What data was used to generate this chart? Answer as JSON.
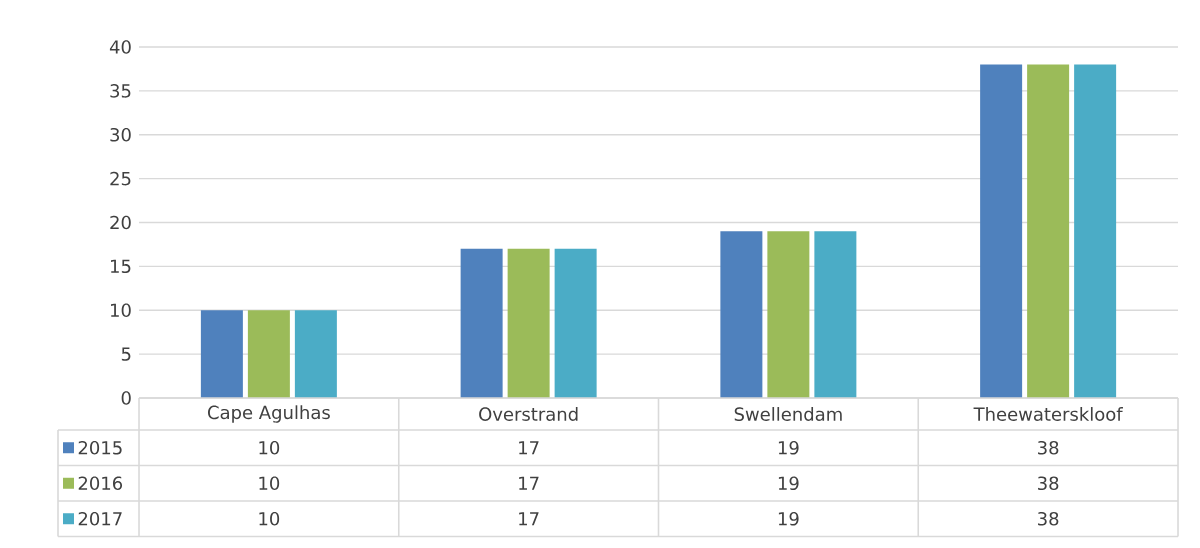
{
  "chart_data": {
    "type": "bar",
    "categories": [
      "Cape Agulhas",
      "Overstrand",
      "Swellendam",
      "Theewaterskloof"
    ],
    "series": [
      {
        "name": "2015",
        "color": "#4f81bd",
        "values": [
          10,
          17,
          19,
          38
        ]
      },
      {
        "name": "2016",
        "color": "#9bbb59",
        "values": [
          10,
          17,
          19,
          38
        ]
      },
      {
        "name": "2017",
        "color": "#4bacc6",
        "values": [
          10,
          17,
          19,
          38
        ]
      }
    ],
    "ylim": [
      0,
      40
    ],
    "yticks": [
      0,
      5,
      10,
      15,
      20,
      25,
      30,
      35,
      40
    ],
    "grid": "y",
    "legend": "bottom",
    "data_labels": true
  }
}
